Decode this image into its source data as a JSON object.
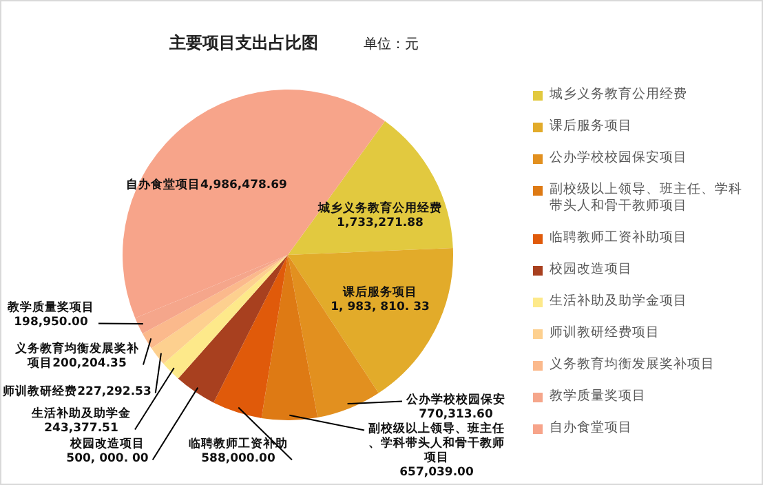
{
  "chart_data": {
    "type": "pie",
    "title": "主要项目支出占比图",
    "subtitle": "单位：元",
    "categories": [
      "城乡义务教育公用经费",
      "课后服务项目",
      "公办学校校园保安项目",
      "副校级以上领导、班主任、学科带头人和骨干教师项目",
      "临聘教师工资补助项目",
      "校园改造项目",
      "生活补助及助学金项目",
      "师训教研经费项目",
      "义务教育均衡发展奖补项目",
      "教学质量奖项目",
      "自办食堂项目"
    ],
    "values": [
      1733271.88,
      1983810.33,
      770313.6,
      657039.0,
      588000.0,
      500000.0,
      243377.51,
      227292.53,
      200204.35,
      198950.0,
      4986478.69
    ],
    "colors": [
      "#e2c93f",
      "#e2ab2a",
      "#e2901f",
      "#de7a14",
      "#e05a0a",
      "#a8401f",
      "#fde98a",
      "#fdd08f",
      "#fbb98c",
      "#f5a68b",
      "#f7a48a"
    ],
    "value_labels": [
      "城乡义务教育公用经费\n1,733,271.88",
      "课后服务项目\n1, 983, 810. 33",
      "公办学校校园保安\n770,313.60",
      "副校级以上领导、班主任、学科带头人和骨干教师项目\n657,039.00",
      "临聘教师工资补助\n588,000.00",
      "校园改造项目\n500, 000. 00",
      "生活补助及助学金\n243,377.51",
      "师训教研经费227,292.53",
      "义务教育均衡发展奖补项目200,204.35",
      "教学质量奖项目\n198,950.00",
      "自办食堂项目4,986,478.69"
    ],
    "legend": "right"
  }
}
